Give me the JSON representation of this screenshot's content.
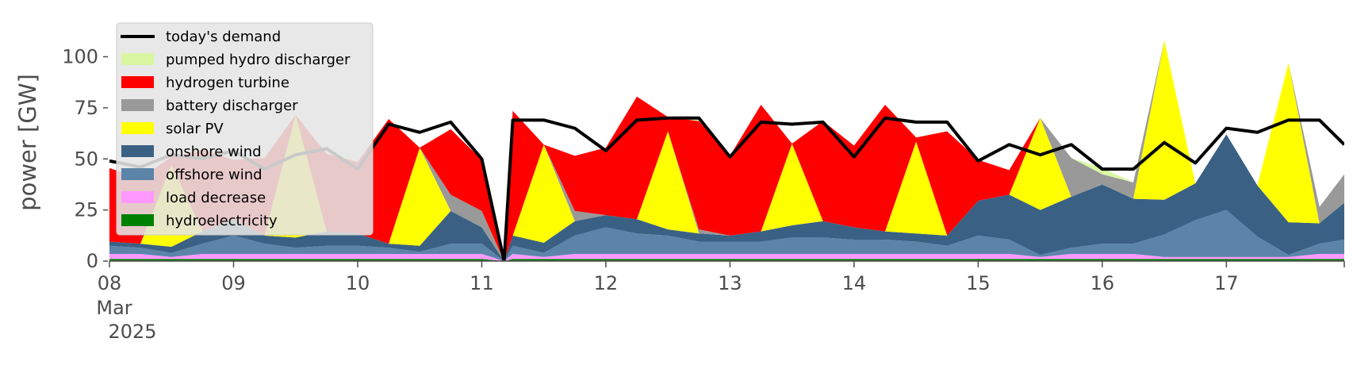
{
  "chart_data": {
    "type": "area",
    "ylabel": "power [GW]",
    "xlabel": "",
    "ylim": [
      0,
      120
    ],
    "xlim": [
      0,
      9.95
    ],
    "x_unit": "days since 08 Mar 2025",
    "y_ticks": [
      {
        "value": 0,
        "label": "0"
      },
      {
        "value": 25,
        "label": "25"
      },
      {
        "value": 50,
        "label": "50"
      },
      {
        "value": 75,
        "label": "75"
      },
      {
        "value": 100,
        "label": "100"
      }
    ],
    "x_ticks": [
      {
        "value": 0,
        "label": "08",
        "sub1": "Mar",
        "sub2": "2025"
      },
      {
        "value": 1,
        "label": "09"
      },
      {
        "value": 2,
        "label": "10"
      },
      {
        "value": 3,
        "label": "11"
      },
      {
        "value": 4,
        "label": "12"
      },
      {
        "value": 5,
        "label": "13"
      },
      {
        "value": 6,
        "label": "14"
      },
      {
        "value": 7,
        "label": "15"
      },
      {
        "value": 8,
        "label": "16"
      },
      {
        "value": 9,
        "label": "17"
      }
    ],
    "legend_position": "top-left",
    "grid": false,
    "x": [
      0,
      0.25,
      0.5,
      0.75,
      1,
      1.25,
      1.5,
      1.75,
      2,
      2.25,
      2.5,
      2.75,
      3,
      3.18,
      3.25,
      3.5,
      3.75,
      4,
      4.25,
      4.5,
      4.75,
      5,
      5.25,
      5.5,
      5.75,
      6,
      6.25,
      6.5,
      6.75,
      7,
      7.25,
      7.5,
      7.75,
      8,
      8.25,
      8.5,
      8.75,
      9,
      9.25,
      9.5,
      9.75,
      9.95
    ],
    "series": [
      {
        "name": "hydroelectricity",
        "color": "#008000",
        "values": [
          1,
          1,
          1,
          1,
          1,
          1,
          1,
          1,
          1,
          1,
          1,
          1,
          1,
          0,
          1,
          1,
          1,
          1,
          1,
          1,
          1,
          1,
          1,
          1,
          1,
          1,
          1,
          1,
          1,
          1,
          1,
          1,
          1,
          1,
          1,
          1,
          1,
          1,
          1,
          1,
          1,
          1
        ]
      },
      {
        "name": "load decrease",
        "color": "#ff99ff",
        "values": [
          2.5,
          2.5,
          1,
          2.5,
          2.5,
          2.5,
          2.5,
          2.5,
          2.5,
          2.5,
          2.5,
          2.5,
          2.5,
          0,
          2.5,
          1,
          2.5,
          2.5,
          2.5,
          2.5,
          2.5,
          2.5,
          2.5,
          2.5,
          2.5,
          2.5,
          2.5,
          2.5,
          2.5,
          2.5,
          2.5,
          1,
          2.5,
          2.5,
          2.5,
          1,
          1,
          1,
          1,
          1,
          2.5,
          2.5
        ]
      },
      {
        "name": "offshore wind",
        "color": "#5b84a8",
        "values": [
          4,
          3,
          2,
          5,
          9,
          5,
          3,
          4,
          4,
          3,
          1,
          5,
          5,
          0,
          4,
          2,
          9,
          13,
          10,
          9,
          6,
          6,
          6,
          8,
          8,
          7,
          7,
          6,
          4,
          9,
          7,
          1,
          3,
          5,
          5,
          11,
          18,
          23,
          10,
          1,
          5,
          7
        ]
      },
      {
        "name": "onshore wind",
        "color": "#3a6184",
        "values": [
          2,
          2,
          3,
          6,
          8,
          4,
          5,
          7,
          6,
          2,
          3,
          16,
          8,
          0,
          5,
          5,
          7,
          6,
          7,
          3,
          4,
          3,
          5,
          6,
          8,
          6,
          4,
          4,
          5,
          17,
          22,
          22,
          25,
          29,
          22,
          17,
          18,
          37,
          25,
          16,
          10,
          18
        ]
      },
      {
        "name": "solar PV",
        "color": "#ffff00",
        "values": [
          0,
          0,
          40,
          0,
          0,
          0,
          60,
          0,
          0,
          0,
          48,
          0,
          0,
          0,
          0,
          48,
          0,
          0,
          0,
          48,
          0,
          0,
          0,
          40,
          0,
          0,
          0,
          45,
          0,
          0,
          0,
          45,
          0,
          0,
          0,
          78,
          0,
          0,
          0,
          78,
          0,
          0
        ]
      },
      {
        "name": "battery discharger",
        "color": "#999999",
        "values": [
          0,
          0,
          0,
          0,
          0,
          0,
          0,
          0,
          0,
          0,
          0,
          8,
          8,
          0,
          0,
          0,
          5,
          0,
          0,
          0,
          2,
          0,
          0,
          0,
          0,
          0,
          0,
          0,
          0,
          0,
          0,
          0,
          19,
          5,
          8,
          0,
          0,
          0,
          0,
          0,
          8,
          14
        ]
      },
      {
        "name": "hydrogen turbine",
        "color": "#ff0000",
        "values": [
          36,
          32,
          4,
          40,
          29,
          38,
          0,
          38,
          35,
          61,
          0,
          32,
          25,
          0,
          61,
          0,
          27,
          33,
          60,
          7,
          53,
          39,
          62,
          0,
          49,
          40,
          62,
          2,
          51,
          20,
          12,
          0,
          0,
          0,
          0,
          0,
          0,
          0,
          0,
          0,
          0,
          0
        ]
      },
      {
        "name": "pumped hydro discharger",
        "color": "#d9f7a1",
        "values": [
          0,
          0,
          0,
          0,
          0,
          0,
          0,
          0,
          0,
          0,
          0,
          0,
          0,
          0,
          0,
          0,
          0,
          0,
          0,
          0,
          2,
          0,
          0,
          0,
          0,
          0,
          0,
          0,
          0,
          0,
          0,
          0,
          0,
          3,
          0,
          0,
          0,
          0,
          0,
          0,
          0,
          0
        ]
      }
    ],
    "demand": {
      "name": "today's demand",
      "color": "#000000",
      "values": [
        49,
        46,
        52,
        50,
        54,
        45,
        52,
        55,
        45,
        67,
        63,
        68,
        50,
        0,
        69,
        69,
        65,
        54,
        69,
        70,
        70,
        51,
        68,
        67,
        68,
        51,
        70,
        68,
        68,
        49,
        57,
        52,
        57,
        45,
        45,
        58,
        48,
        65,
        63,
        69,
        69,
        57
      ]
    },
    "legend": [
      {
        "label": "today's demand",
        "color": "#000000",
        "kind": "line"
      },
      {
        "label": "pumped hydro discharger",
        "color": "#d9f7a1",
        "kind": "patch"
      },
      {
        "label": "hydrogen turbine",
        "color": "#ff0000",
        "kind": "patch"
      },
      {
        "label": "battery discharger",
        "color": "#999999",
        "kind": "patch"
      },
      {
        "label": "solar PV",
        "color": "#ffff00",
        "kind": "patch"
      },
      {
        "label": "onshore wind",
        "color": "#3a6184",
        "kind": "patch"
      },
      {
        "label": "offshore wind",
        "color": "#5b84a8",
        "kind": "patch"
      },
      {
        "label": "load decrease",
        "color": "#ff99ff",
        "kind": "patch"
      },
      {
        "label": "hydroelectricity",
        "color": "#008000",
        "kind": "patch"
      }
    ]
  }
}
